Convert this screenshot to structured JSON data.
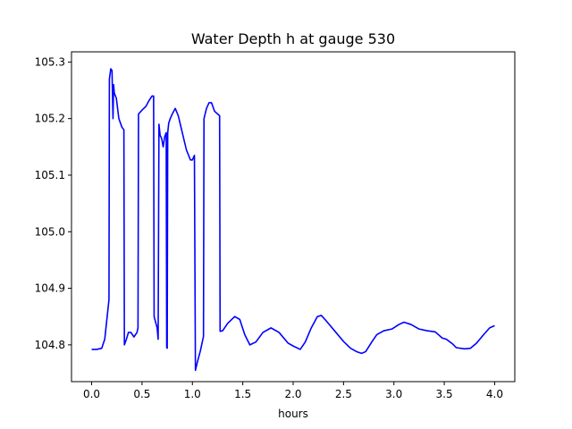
{
  "chart_data": {
    "type": "line",
    "title": "Water Depth h at gauge 530",
    "xlabel": "hours",
    "ylabel": "",
    "xlim": [
      -0.2,
      4.2
    ],
    "ylim": [
      104.735,
      105.318
    ],
    "x_ticks": [
      0.0,
      0.5,
      1.0,
      1.5,
      2.0,
      2.5,
      3.0,
      3.5,
      4.0
    ],
    "x_tick_labels": [
      "0.0",
      "0.5",
      "1.0",
      "1.5",
      "2.0",
      "2.5",
      "3.0",
      "3.5",
      "4.0"
    ],
    "y_ticks": [
      104.8,
      104.9,
      105.0,
      105.1,
      105.2,
      105.3
    ],
    "y_tick_labels": [
      "104.8",
      "104.9",
      "105.0",
      "105.1",
      "105.2",
      "105.3"
    ],
    "grid": false,
    "series": [
      {
        "color": "#0000ff",
        "points": [
          [
            0.0,
            104.792
          ],
          [
            0.05,
            104.792
          ],
          [
            0.1,
            104.794
          ],
          [
            0.13,
            104.81
          ],
          [
            0.16,
            104.86
          ],
          [
            0.172,
            104.88
          ],
          [
            0.176,
            105.27
          ],
          [
            0.19,
            105.288
          ],
          [
            0.202,
            105.285
          ],
          [
            0.212,
            105.2
          ],
          [
            0.218,
            105.26
          ],
          [
            0.225,
            105.245
          ],
          [
            0.245,
            105.236
          ],
          [
            0.27,
            105.2
          ],
          [
            0.3,
            105.185
          ],
          [
            0.32,
            105.18
          ],
          [
            0.325,
            104.8
          ],
          [
            0.345,
            104.81
          ],
          [
            0.365,
            104.822
          ],
          [
            0.39,
            104.822
          ],
          [
            0.42,
            104.814
          ],
          [
            0.45,
            104.822
          ],
          [
            0.46,
            104.83
          ],
          [
            0.465,
            105.208
          ],
          [
            0.5,
            105.215
          ],
          [
            0.54,
            105.222
          ],
          [
            0.57,
            105.232
          ],
          [
            0.6,
            105.24
          ],
          [
            0.615,
            105.24
          ],
          [
            0.62,
            104.85
          ],
          [
            0.65,
            104.83
          ],
          [
            0.66,
            104.81
          ],
          [
            0.668,
            105.19
          ],
          [
            0.68,
            105.17
          ],
          [
            0.695,
            105.165
          ],
          [
            0.71,
            105.15
          ],
          [
            0.725,
            105.168
          ],
          [
            0.74,
            105.175
          ],
          [
            0.745,
            104.795
          ],
          [
            0.75,
            104.794
          ],
          [
            0.755,
            105.175
          ],
          [
            0.765,
            105.192
          ],
          [
            0.78,
            105.2
          ],
          [
            0.8,
            105.208
          ],
          [
            0.83,
            105.218
          ],
          [
            0.86,
            105.205
          ],
          [
            0.9,
            105.175
          ],
          [
            0.94,
            105.145
          ],
          [
            0.98,
            105.127
          ],
          [
            1.0,
            105.127
          ],
          [
            1.02,
            105.135
          ],
          [
            1.03,
            104.755
          ],
          [
            1.05,
            104.77
          ],
          [
            1.08,
            104.79
          ],
          [
            1.11,
            104.815
          ],
          [
            1.115,
            105.2
          ],
          [
            1.14,
            105.218
          ],
          [
            1.165,
            105.228
          ],
          [
            1.19,
            105.228
          ],
          [
            1.22,
            105.213
          ],
          [
            1.27,
            105.205
          ],
          [
            1.275,
            104.824
          ],
          [
            1.3,
            104.825
          ],
          [
            1.35,
            104.838
          ],
          [
            1.42,
            104.85
          ],
          [
            1.47,
            104.845
          ],
          [
            1.52,
            104.818
          ],
          [
            1.57,
            104.8
          ],
          [
            1.63,
            104.805
          ],
          [
            1.7,
            104.822
          ],
          [
            1.78,
            104.83
          ],
          [
            1.86,
            104.822
          ],
          [
            1.95,
            104.803
          ],
          [
            2.0,
            104.798
          ],
          [
            2.07,
            104.792
          ],
          [
            2.12,
            104.805
          ],
          [
            2.18,
            104.83
          ],
          [
            2.24,
            104.85
          ],
          [
            2.28,
            104.852
          ],
          [
            2.33,
            104.842
          ],
          [
            2.42,
            104.823
          ],
          [
            2.5,
            104.806
          ],
          [
            2.57,
            104.794
          ],
          [
            2.63,
            104.788
          ],
          [
            2.68,
            104.785
          ],
          [
            2.72,
            104.788
          ],
          [
            2.78,
            104.805
          ],
          [
            2.83,
            104.818
          ],
          [
            2.9,
            104.825
          ],
          [
            2.98,
            104.828
          ],
          [
            3.05,
            104.836
          ],
          [
            3.1,
            104.84
          ],
          [
            3.17,
            104.836
          ],
          [
            3.25,
            104.828
          ],
          [
            3.33,
            104.825
          ],
          [
            3.41,
            104.823
          ],
          [
            3.48,
            104.812
          ],
          [
            3.52,
            104.81
          ],
          [
            3.58,
            104.802
          ],
          [
            3.62,
            104.795
          ],
          [
            3.7,
            104.793
          ],
          [
            3.76,
            104.794
          ],
          [
            3.82,
            104.803
          ],
          [
            3.89,
            104.818
          ],
          [
            3.95,
            104.83
          ],
          [
            4.0,
            104.834
          ]
        ]
      }
    ]
  }
}
